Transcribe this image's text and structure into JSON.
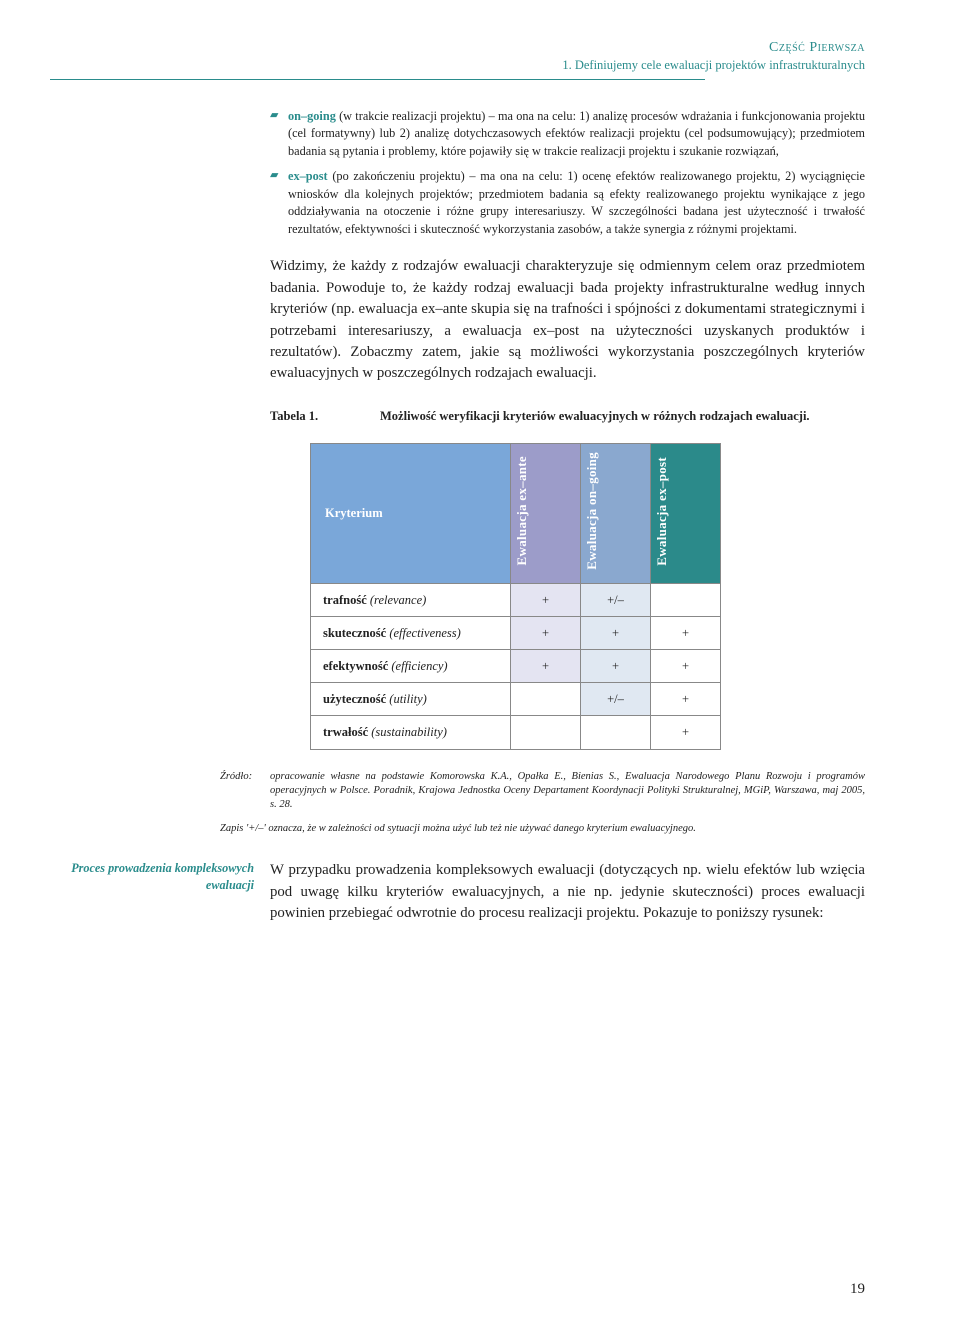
{
  "header": {
    "part": "Część Pierwsza",
    "chapter": "1. Definiujemy cele ewaluacji projektów infrastrukturalnych"
  },
  "bullets": [
    {
      "term": "on–going",
      "text": " (w trakcie realizacji projektu) – ma ona na celu: 1) analizę procesów wdrażania i funkcjonowania projektu (cel formatywny) lub 2) analizę dotychczasowych efektów realizacji projektu (cel podsumowujący); przedmiotem badania są pytania i problemy, które pojawiły się w trakcie realizacji projektu i szukanie rozwiązań,"
    },
    {
      "term": "ex–post",
      "text": " (po zakończeniu projektu) – ma ona na celu: 1) ocenę efektów realizowanego projektu, 2) wyciągnięcie wniosków dla kolejnych projektów; przedmiotem badania są efekty realizowanego projektu wynikające z jego oddziaływania na otoczenie i różne grupy interesariuszy. W szczególności badana jest użyteczność i trwałość rezultatów, efektywności i skuteczność wykorzystania zasobów, a także synergia z różnymi projektami."
    }
  ],
  "paragraph1": "Widzimy, że każdy z rodzajów ewaluacji charakteryzuje się odmiennym celem oraz przedmiotem badania. Powoduje to, że każdy rodzaj ewaluacji bada projekty infrastrukturalne według innych kryteriów (np. ewaluacja ex–ante skupia się na trafności i spójności z dokumentami strategicznymi i potrzebami interesariuszy, a ewaluacja ex–post na użyteczności uzyskanych produktów i rezultatów). Zobaczmy zatem, jakie są możliwości wykorzystania poszczególnych kryteriów ewaluacyjnych w poszczególnych rodzajach ewaluacji.",
  "tableCaption": {
    "label": "Tabela 1.",
    "text": "Możliwość weryfikacji kryteriów ewaluacyjnych w różnych rodzajach ewaluacji."
  },
  "table": {
    "kryteriumHeader": "Kryterium",
    "columns": [
      {
        "label": "Ewaluacja ex–ante",
        "bg": "#9c9cc9"
      },
      {
        "label": "Ewaluacja on–going",
        "bg": "#8aa8cf"
      },
      {
        "label": "Ewaluacja ex–post",
        "bg": "#2b8a8a"
      }
    ],
    "rows": [
      {
        "bold": "trafność",
        "italic": "(relevance)",
        "vals": [
          "+",
          "+/–",
          ""
        ]
      },
      {
        "bold": "skuteczność",
        "italic": "(effectiveness)",
        "vals": [
          "+",
          "+",
          "+"
        ]
      },
      {
        "bold": "efektywność",
        "italic": "(efficiency)",
        "vals": [
          "+",
          "+",
          "+"
        ]
      },
      {
        "bold": "użyteczność",
        "italic": "(utility)",
        "vals": [
          "",
          "+/–",
          "+"
        ]
      },
      {
        "bold": "trwałość",
        "italic": "(sustainability)",
        "vals": [
          "",
          "",
          "+"
        ]
      }
    ],
    "cellBg": [
      "#e4e4f2",
      "#e0e8f2",
      "#ffffff"
    ]
  },
  "source": {
    "label": "Źródło:",
    "text": "opracowanie własne na podstawie Komorowska K.A., Opałka E., Bienias S., Ewaluacja Narodowego Planu Rozwoju i programów operacyjnych w Polsce. Poradnik, Krajowa Jednostka Oceny Departament Koordynacji Polityki Strukturalnej, MGiP, Warszawa, maj 2005, s. 28."
  },
  "note": "Zapis '+/–' oznacza, że w zależności od sytuacji można użyć lub też nie używać danego kryterium ewaluacyjnego.",
  "marginLabel": "Proces prowadzenia kompleksowych ewaluacji",
  "paragraph2": "W przypadku prowadzenia kompleksowych ewaluacji (dotyczących np. wielu efektów lub wzięcia pod uwagę kilku kryteriów ewaluacyjnych, a nie np. jedynie skuteczności) proces ewaluacji powinien przebiegać odwrotnie do procesu realizacji projektu. Pokazuje to poniższy rysunek:",
  "pageNumber": "19"
}
